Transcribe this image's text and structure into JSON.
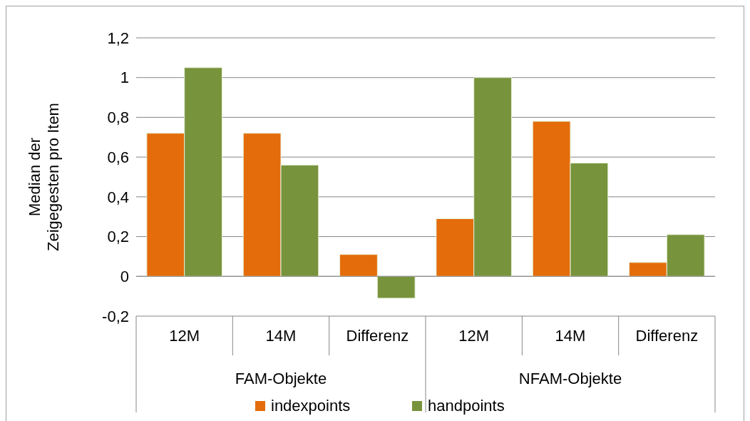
{
  "chart_data": {
    "type": "bar",
    "ylabel": "Median der Zeigegesten pro Item",
    "categories": [
      "12M",
      "14M",
      "Differenz",
      "12M",
      "14M",
      "Differenz"
    ],
    "annotations": [
      "FAM-Objekte",
      "NFAM-Objekte"
    ],
    "series": [
      {
        "name": "indexpoints",
        "color": "#e46c0a",
        "values": [
          0.72,
          0.72,
          0.11,
          0.29,
          0.78,
          0.07
        ]
      },
      {
        "name": "handpoints",
        "color": "#77933c",
        "values": [
          1.05,
          0.56,
          -0.11,
          1.0,
          0.57,
          0.21
        ]
      }
    ],
    "ylim": [
      -0.2,
      1.2
    ],
    "yticks": [
      {
        "value": -0.2,
        "label": "-0,2"
      },
      {
        "value": 0,
        "label": "0"
      },
      {
        "value": 0.2,
        "label": "0,2"
      },
      {
        "value": 0.4,
        "label": "0,4"
      },
      {
        "value": 0.6,
        "label": "0,6"
      },
      {
        "value": 0.8,
        "label": "0,8"
      },
      {
        "value": 1,
        "label": "1"
      },
      {
        "value": 1.2,
        "label": "1,2"
      }
    ],
    "grid": "y",
    "legend": "bottom"
  }
}
